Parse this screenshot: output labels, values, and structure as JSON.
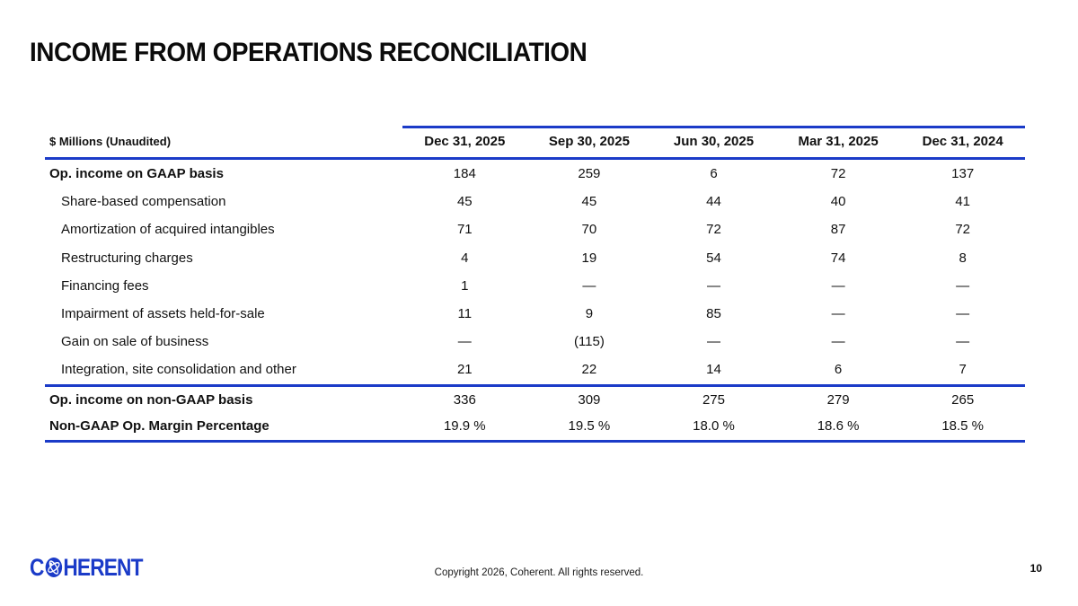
{
  "slide": {
    "title": "INCOME FROM OPERATIONS RECONCILIATION",
    "copyright": "Copyright 2026, Coherent. All rights reserved.",
    "page_number": "10"
  },
  "logo": {
    "prefix": "C",
    "suffix": "HERENT",
    "icon": "atom-globe-icon",
    "color": "#1B3BC8"
  },
  "table": {
    "accent_color": "#1B3BC8",
    "unit_label": "$ Millions (Unaudited)",
    "columns": [
      "Dec 31, 2025",
      "Sep 30, 2025",
      "Jun 30, 2025",
      "Mar 31, 2025",
      "Dec 31, 2024"
    ],
    "rows": [
      {
        "label": "Op. income on GAAP basis",
        "style": "bold",
        "values": [
          "184",
          "259",
          "6",
          "72",
          "137"
        ]
      },
      {
        "label": "Share-based compensation",
        "style": "indent",
        "values": [
          "45",
          "45",
          "44",
          "40",
          "41"
        ]
      },
      {
        "label": "Amortization of acquired intangibles",
        "style": "indent",
        "values": [
          "71",
          "70",
          "72",
          "87",
          "72"
        ]
      },
      {
        "label": "Restructuring charges",
        "style": "indent",
        "values": [
          "4",
          "19",
          "54",
          "74",
          "8"
        ]
      },
      {
        "label": "Financing fees",
        "style": "indent",
        "values": [
          "1",
          "—",
          "—",
          "—",
          "—"
        ]
      },
      {
        "label": "Impairment of assets held-for-sale",
        "style": "indent",
        "values": [
          "11",
          "9",
          "85",
          "—",
          "—"
        ]
      },
      {
        "label": "Gain on sale of business",
        "style": "indent",
        "values": [
          "—",
          "(115)",
          "—",
          "—",
          "—"
        ]
      },
      {
        "label": "Integration, site consolidation and other",
        "style": "indent",
        "values": [
          "21",
          "22",
          "14",
          "6",
          "7"
        ]
      }
    ],
    "summary_rows": [
      {
        "label": "Op. income on non-GAAP basis",
        "style": "bold",
        "values": [
          "336",
          "309",
          "275",
          "279",
          "265"
        ]
      },
      {
        "label": "Non-GAAP Op. Margin Percentage",
        "style": "bold",
        "values": [
          "19.9 %",
          "19.5 %",
          "18.0 %",
          "18.6 %",
          "18.5 %"
        ]
      }
    ]
  }
}
